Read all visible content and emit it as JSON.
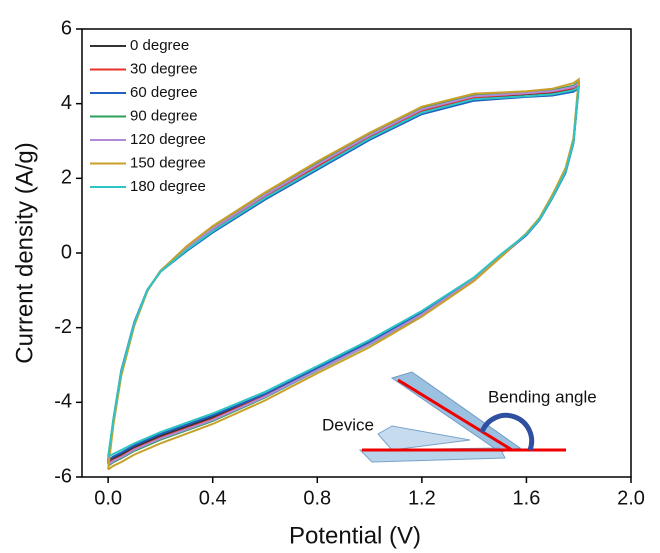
{
  "chart_data": {
    "type": "line",
    "xlabel": "Potential (V)",
    "ylabel": "Current density (A/g)",
    "xlim": [
      -0.1,
      2.0
    ],
    "ylim": [
      -6,
      6
    ],
    "xticks": [
      {
        "value": 0,
        "label": "0.0"
      },
      0.4,
      0.8,
      1.2,
      1.6,
      {
        "value": 2,
        "label": "2.0"
      }
    ],
    "yticks": [
      -6,
      -4,
      -2,
      0,
      2,
      4,
      6
    ],
    "legend": "upper left",
    "annotations": [
      "Device",
      "Bending angle"
    ],
    "x": [
      0,
      0.02,
      0.05,
      0.1,
      0.15,
      0.2,
      0.3,
      0.4,
      0.6,
      0.8,
      1.0,
      1.2,
      1.4,
      1.6,
      1.7,
      1.78,
      1.8,
      1.78,
      1.75,
      1.7,
      1.65,
      1.6,
      1.5,
      1.4,
      1.2,
      1.0,
      0.8,
      0.6,
      0.4,
      0.2,
      0.1,
      0.05,
      0.02,
      0
    ],
    "series": [
      {
        "name": "0 degree",
        "color": "#333333",
        "values": [
          -5.6,
          -4.5,
          -3.2,
          -1.9,
          -1.0,
          -0.5,
          0.1,
          0.6,
          1.5,
          2.3,
          3.1,
          3.8,
          4.15,
          4.25,
          4.3,
          4.4,
          4.5,
          3.0,
          2.2,
          1.5,
          0.9,
          0.5,
          -0.1,
          -0.7,
          -1.6,
          -2.4,
          -3.1,
          -3.8,
          -4.4,
          -4.9,
          -5.2,
          -5.4,
          -5.5,
          -5.6
        ]
      },
      {
        "name": "30 degree",
        "color": "#e8312a",
        "values": [
          -5.62,
          -4.52,
          -3.22,
          -1.9,
          -1.0,
          -0.5,
          0.12,
          0.62,
          1.52,
          2.33,
          3.13,
          3.82,
          4.17,
          4.27,
          4.32,
          4.42,
          4.52,
          3.0,
          2.2,
          1.5,
          0.9,
          0.5,
          -0.12,
          -0.72,
          -1.63,
          -2.43,
          -3.13,
          -3.83,
          -4.45,
          -4.95,
          -5.25,
          -5.45,
          -5.55,
          -5.62
        ]
      },
      {
        "name": "60 degree",
        "color": "#1f5fbf",
        "values": [
          -5.55,
          -4.45,
          -3.15,
          -1.85,
          -0.98,
          -0.5,
          0.05,
          0.55,
          1.43,
          2.23,
          3.03,
          3.72,
          4.08,
          4.18,
          4.22,
          4.32,
          4.42,
          2.95,
          2.15,
          1.48,
          0.88,
          0.48,
          -0.1,
          -0.7,
          -1.6,
          -2.38,
          -3.08,
          -3.78,
          -4.35,
          -4.85,
          -5.15,
          -5.35,
          -5.45,
          -5.55
        ]
      },
      {
        "name": "90 degree",
        "color": "#2ca05a",
        "values": [
          -5.65,
          -4.55,
          -3.25,
          -1.92,
          -1.0,
          -0.48,
          0.15,
          0.68,
          1.58,
          2.4,
          3.18,
          3.88,
          4.22,
          4.3,
          4.36,
          4.48,
          4.58,
          3.05,
          2.25,
          1.55,
          0.92,
          0.52,
          -0.1,
          -0.72,
          -1.65,
          -2.45,
          -3.15,
          -3.87,
          -4.5,
          -5.0,
          -5.3,
          -5.5,
          -5.6,
          -5.7
        ]
      },
      {
        "name": "120 degree",
        "color": "#b08ad8",
        "values": [
          -5.63,
          -4.53,
          -3.23,
          -1.91,
          -1.0,
          -0.49,
          0.13,
          0.65,
          1.55,
          2.37,
          3.15,
          3.85,
          4.2,
          4.28,
          4.34,
          4.45,
          4.55,
          3.02,
          2.22,
          1.52,
          0.91,
          0.51,
          -0.1,
          -0.71,
          -1.64,
          -2.44,
          -3.14,
          -3.85,
          -4.47,
          -4.97,
          -5.27,
          -5.47,
          -5.57,
          -5.67
        ]
      },
      {
        "name": "150 degree",
        "color": "#c8a02a",
        "values": [
          -5.8,
          -4.6,
          -3.3,
          -1.95,
          -1.02,
          -0.48,
          0.18,
          0.72,
          1.62,
          2.45,
          3.22,
          3.92,
          4.27,
          4.33,
          4.4,
          4.55,
          4.65,
          3.08,
          2.28,
          1.57,
          0.94,
          0.53,
          -0.12,
          -0.75,
          -1.7,
          -2.52,
          -3.22,
          -3.95,
          -4.58,
          -5.1,
          -5.4,
          -5.6,
          -5.7,
          -5.8
        ]
      },
      {
        "name": "180 degree",
        "color": "#2ec4c4",
        "values": [
          -5.45,
          -4.45,
          -3.18,
          -1.88,
          -0.99,
          -0.5,
          0.08,
          0.58,
          1.47,
          2.27,
          3.07,
          3.76,
          4.12,
          4.2,
          4.25,
          4.36,
          4.45,
          2.98,
          2.18,
          1.5,
          0.9,
          0.5,
          -0.05,
          -0.65,
          -1.55,
          -2.33,
          -3.03,
          -3.72,
          -4.3,
          -4.8,
          -5.1,
          -5.28,
          -5.38,
          -5.45
        ]
      }
    ]
  }
}
